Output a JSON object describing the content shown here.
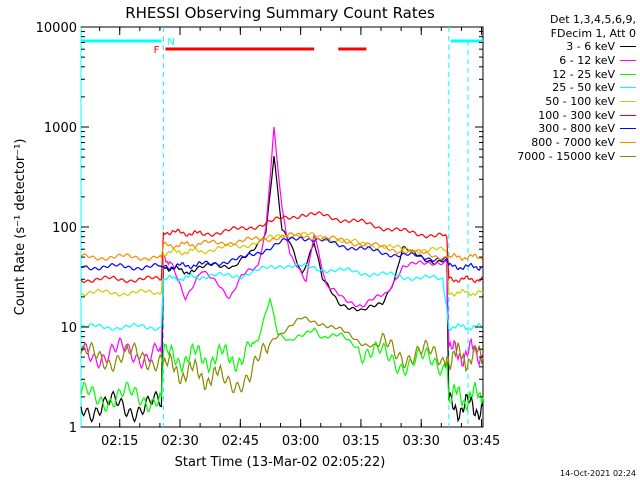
{
  "chart_data": {
    "type": "line",
    "title": "RHESSI Observing Summary Count Rates",
    "xlabel": "Start Time (13-Mar-02 02:05:22)",
    "ylabel": "Count Rate (s⁻¹ detector⁻¹)",
    "x_unit": "minutes since 02:05:22",
    "xlim": [
      0,
      100
    ],
    "ylim": [
      1,
      10000
    ],
    "yscale": "log",
    "x_ticks": [
      "02:15",
      "02:30",
      "02:45",
      "03:00",
      "03:15",
      "03:30",
      "03:45"
    ],
    "y_ticks": [
      "1",
      "10",
      "100",
      "1000",
      "10000"
    ],
    "grid": false,
    "legend_header": [
      "Det 1,3,4,5,6,9,",
      "FDecim 1, Att 0"
    ],
    "legend_position": "right",
    "flags": [
      {
        "label": "N",
        "color": "#00ffff",
        "segments": [
          [
            0,
            20
          ],
          [
            92,
            100
          ]
        ]
      },
      {
        "label": "F",
        "color": "#ff0000",
        "segments": [
          [
            21,
            58
          ],
          [
            64,
            71
          ]
        ]
      }
    ],
    "night_boundaries": [
      20.5,
      91.5
    ],
    "series": [
      {
        "name": "3 - 6 keV",
        "color": "#000000",
        "points": [
          [
            0,
            1.6
          ],
          [
            20,
            1.6
          ],
          [
            20.5,
            40
          ],
          [
            28,
            35
          ],
          [
            33,
            45
          ],
          [
            38,
            38
          ],
          [
            42,
            55
          ],
          [
            46,
            90
          ],
          [
            48,
            500
          ],
          [
            50,
            90
          ],
          [
            52,
            70
          ],
          [
            55,
            35
          ],
          [
            58,
            70
          ],
          [
            60,
            30
          ],
          [
            64,
            18
          ],
          [
            70,
            14
          ],
          [
            75,
            18
          ],
          [
            78,
            30
          ],
          [
            80,
            60
          ],
          [
            88,
            45
          ],
          [
            91,
            45
          ],
          [
            91.5,
            1.6
          ],
          [
            100,
            1.6
          ]
        ]
      },
      {
        "name": "6 - 12 keV",
        "color": "#ff00ff",
        "points": [
          [
            0,
            5.5
          ],
          [
            20,
            5.5
          ],
          [
            20.5,
            50
          ],
          [
            23,
            40
          ],
          [
            26,
            20
          ],
          [
            30,
            35
          ],
          [
            34,
            28
          ],
          [
            37,
            20
          ],
          [
            40,
            32
          ],
          [
            44,
            40
          ],
          [
            46,
            100
          ],
          [
            48,
            1000
          ],
          [
            50,
            150
          ],
          [
            52,
            50
          ],
          [
            56,
            30
          ],
          [
            58,
            90
          ],
          [
            61,
            25
          ],
          [
            65,
            20
          ],
          [
            70,
            16
          ],
          [
            76,
            22
          ],
          [
            80,
            40
          ],
          [
            88,
            45
          ],
          [
            91,
            45
          ],
          [
            91.5,
            5.5
          ],
          [
            100,
            5.5
          ]
        ]
      },
      {
        "name": "12 - 25 keV",
        "color": "#00ff00",
        "points": [
          [
            0,
            2
          ],
          [
            20,
            2
          ],
          [
            20.5,
            5
          ],
          [
            40,
            5
          ],
          [
            44,
            7
          ],
          [
            47,
            20
          ],
          [
            49,
            9
          ],
          [
            52,
            7
          ],
          [
            55,
            8
          ],
          [
            58,
            10
          ],
          [
            60,
            8
          ],
          [
            65,
            8
          ],
          [
            70,
            6
          ],
          [
            75,
            5
          ],
          [
            80,
            4.5
          ],
          [
            91,
            4.5
          ],
          [
            91.5,
            2
          ],
          [
            100,
            2
          ]
        ]
      },
      {
        "name": "25 - 50 keV",
        "color": "#00ffff",
        "points": [
          [
            0,
            10
          ],
          [
            20,
            10
          ],
          [
            20.5,
            30
          ],
          [
            30,
            32
          ],
          [
            40,
            33
          ],
          [
            50,
            42
          ],
          [
            55,
            40
          ],
          [
            60,
            38
          ],
          [
            70,
            35
          ],
          [
            80,
            32
          ],
          [
            90,
            30
          ],
          [
            91.5,
            10
          ],
          [
            100,
            10
          ]
        ]
      },
      {
        "name": "50 - 100 keV",
        "color": "#cccc00",
        "points": [
          [
            0,
            22
          ],
          [
            20,
            22
          ],
          [
            20.5,
            55
          ],
          [
            30,
            58
          ],
          [
            40,
            65
          ],
          [
            50,
            82
          ],
          [
            55,
            85
          ],
          [
            60,
            78
          ],
          [
            70,
            68
          ],
          [
            80,
            60
          ],
          [
            91,
            58
          ],
          [
            91.5,
            22
          ],
          [
            100,
            22
          ]
        ]
      },
      {
        "name": "100 - 300 keV",
        "color": "#ff0000",
        "points": [
          [
            0,
            30
          ],
          [
            20,
            30
          ],
          [
            20.5,
            90
          ],
          [
            30,
            85
          ],
          [
            40,
            95
          ],
          [
            50,
            120
          ],
          [
            55,
            135
          ],
          [
            60,
            130
          ],
          [
            70,
            110
          ],
          [
            80,
            90
          ],
          [
            91,
            80
          ],
          [
            91.5,
            30
          ],
          [
            100,
            30
          ]
        ]
      },
      {
        "name": "300 - 800 keV",
        "color": "#0000ff",
        "points": [
          [
            0,
            40
          ],
          [
            20,
            40
          ],
          [
            20.5,
            40
          ],
          [
            30,
            42
          ],
          [
            40,
            48
          ],
          [
            50,
            70
          ],
          [
            55,
            80
          ],
          [
            60,
            72
          ],
          [
            70,
            60
          ],
          [
            80,
            52
          ],
          [
            91,
            48
          ],
          [
            91.5,
            40
          ],
          [
            100,
            40
          ]
        ]
      },
      {
        "name": "800 - 7000 keV",
        "color": "#ff8800",
        "points": [
          [
            0,
            50
          ],
          [
            20,
            50
          ],
          [
            20.5,
            65
          ],
          [
            30,
            68
          ],
          [
            40,
            72
          ],
          [
            50,
            80
          ],
          [
            55,
            82
          ],
          [
            60,
            78
          ],
          [
            70,
            68
          ],
          [
            80,
            58
          ],
          [
            91,
            50
          ],
          [
            91.5,
            50
          ],
          [
            100,
            50
          ]
        ]
      },
      {
        "name": "7000 - 15000 keV",
        "color": "#888800",
        "points": [
          [
            0,
            5
          ],
          [
            20,
            5
          ],
          [
            20.5,
            4
          ],
          [
            35,
            3
          ],
          [
            42,
            3
          ],
          [
            48,
            8
          ],
          [
            55,
            12
          ],
          [
            60,
            11
          ],
          [
            65,
            9
          ],
          [
            70,
            7
          ],
          [
            80,
            5.5
          ],
          [
            91,
            5
          ],
          [
            91.5,
            5
          ],
          [
            100,
            5
          ]
        ]
      }
    ]
  },
  "footer": {
    "date": "14-Oct-2021 02:24"
  }
}
